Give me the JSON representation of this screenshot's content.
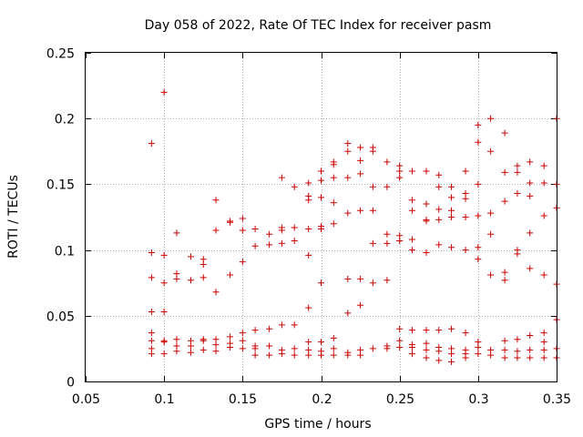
{
  "chart_data": {
    "type": "scatter",
    "title": "Day 058 of 2022, Rate Of TEC Index for receiver pasm",
    "xlabel": "GPS time / hours",
    "ylabel": "ROTI / TECUs",
    "xlim": [
      0.05,
      0.35
    ],
    "ylim": [
      0,
      0.25
    ],
    "xticks": [
      0.05,
      0.1,
      0.15,
      0.2,
      0.25,
      0.3,
      0.35
    ],
    "xtick_labels": [
      "0.05",
      "0.1",
      "0.15",
      "0.2",
      "0.25",
      "0.3",
      "0.35"
    ],
    "yticks": [
      0,
      0.05,
      0.1,
      0.15,
      0.2,
      0.25
    ],
    "ytick_labels": [
      "0",
      "0.05",
      "0.1",
      "0.15",
      "0.2",
      "0.25"
    ],
    "grid": true,
    "marker": "+",
    "color": "#cc0000",
    "series": [
      {
        "name": "ROTI",
        "points": [
          [
            0.092,
            0.181
          ],
          [
            0.092,
            0.098
          ],
          [
            0.092,
            0.079
          ],
          [
            0.092,
            0.053
          ],
          [
            0.092,
            0.037
          ],
          [
            0.092,
            0.031
          ],
          [
            0.092,
            0.025
          ],
          [
            0.092,
            0.021
          ],
          [
            0.1,
            0.22
          ],
          [
            0.1,
            0.096
          ],
          [
            0.1,
            0.075
          ],
          [
            0.1,
            0.053
          ],
          [
            0.1,
            0.031
          ],
          [
            0.1,
            0.03
          ],
          [
            0.1,
            0.021
          ],
          [
            0.108,
            0.113
          ],
          [
            0.108,
            0.082
          ],
          [
            0.108,
            0.078
          ],
          [
            0.108,
            0.032
          ],
          [
            0.108,
            0.027
          ],
          [
            0.108,
            0.023
          ],
          [
            0.117,
            0.095
          ],
          [
            0.117,
            0.077
          ],
          [
            0.117,
            0.031
          ],
          [
            0.117,
            0.027
          ],
          [
            0.117,
            0.022
          ],
          [
            0.125,
            0.093
          ],
          [
            0.125,
            0.089
          ],
          [
            0.125,
            0.079
          ],
          [
            0.125,
            0.032
          ],
          [
            0.125,
            0.031
          ],
          [
            0.125,
            0.024
          ],
          [
            0.133,
            0.138
          ],
          [
            0.133,
            0.115
          ],
          [
            0.133,
            0.068
          ],
          [
            0.133,
            0.032
          ],
          [
            0.133,
            0.028
          ],
          [
            0.133,
            0.023
          ],
          [
            0.142,
            0.122
          ],
          [
            0.142,
            0.121
          ],
          [
            0.142,
            0.081
          ],
          [
            0.142,
            0.034
          ],
          [
            0.142,
            0.029
          ],
          [
            0.142,
            0.026
          ],
          [
            0.15,
            0.124
          ],
          [
            0.15,
            0.115
          ],
          [
            0.15,
            0.091
          ],
          [
            0.15,
            0.037
          ],
          [
            0.15,
            0.031
          ],
          [
            0.15,
            0.025
          ],
          [
            0.158,
            0.116
          ],
          [
            0.158,
            0.103
          ],
          [
            0.158,
            0.039
          ],
          [
            0.158,
            0.027
          ],
          [
            0.158,
            0.025
          ],
          [
            0.158,
            0.02
          ],
          [
            0.167,
            0.112
          ],
          [
            0.167,
            0.104
          ],
          [
            0.167,
            0.04
          ],
          [
            0.167,
            0.027
          ],
          [
            0.167,
            0.02
          ],
          [
            0.175,
            0.155
          ],
          [
            0.175,
            0.117
          ],
          [
            0.175,
            0.115
          ],
          [
            0.175,
            0.105
          ],
          [
            0.175,
            0.043
          ],
          [
            0.175,
            0.024
          ],
          [
            0.175,
            0.021
          ],
          [
            0.183,
            0.148
          ],
          [
            0.183,
            0.117
          ],
          [
            0.183,
            0.107
          ],
          [
            0.183,
            0.043
          ],
          [
            0.183,
            0.025
          ],
          [
            0.183,
            0.02
          ],
          [
            0.192,
            0.151
          ],
          [
            0.192,
            0.141
          ],
          [
            0.192,
            0.138
          ],
          [
            0.192,
            0.116
          ],
          [
            0.192,
            0.096
          ],
          [
            0.192,
            0.056
          ],
          [
            0.192,
            0.03
          ],
          [
            0.192,
            0.024
          ],
          [
            0.192,
            0.02
          ],
          [
            0.2,
            0.16
          ],
          [
            0.2,
            0.153
          ],
          [
            0.2,
            0.14
          ],
          [
            0.2,
            0.118
          ],
          [
            0.2,
            0.116
          ],
          [
            0.2,
            0.075
          ],
          [
            0.2,
            0.03
          ],
          [
            0.2,
            0.023
          ],
          [
            0.2,
            0.02
          ],
          [
            0.208,
            0.167
          ],
          [
            0.208,
            0.165
          ],
          [
            0.208,
            0.155
          ],
          [
            0.208,
            0.136
          ],
          [
            0.208,
            0.12
          ],
          [
            0.208,
            0.033
          ],
          [
            0.208,
            0.025
          ],
          [
            0.208,
            0.02
          ],
          [
            0.217,
            0.181
          ],
          [
            0.217,
            0.175
          ],
          [
            0.217,
            0.155
          ],
          [
            0.217,
            0.128
          ],
          [
            0.217,
            0.078
          ],
          [
            0.217,
            0.052
          ],
          [
            0.217,
            0.022
          ],
          [
            0.217,
            0.02
          ],
          [
            0.225,
            0.178
          ],
          [
            0.225,
            0.168
          ],
          [
            0.225,
            0.158
          ],
          [
            0.225,
            0.13
          ],
          [
            0.225,
            0.078
          ],
          [
            0.225,
            0.058
          ],
          [
            0.225,
            0.024
          ],
          [
            0.225,
            0.02
          ],
          [
            0.233,
            0.178
          ],
          [
            0.233,
            0.175
          ],
          [
            0.233,
            0.148
          ],
          [
            0.233,
            0.13
          ],
          [
            0.233,
            0.105
          ],
          [
            0.233,
            0.075
          ],
          [
            0.233,
            0.025
          ],
          [
            0.242,
            0.167
          ],
          [
            0.242,
            0.148
          ],
          [
            0.242,
            0.112
          ],
          [
            0.242,
            0.105
          ],
          [
            0.242,
            0.077
          ],
          [
            0.242,
            0.027
          ],
          [
            0.242,
            0.025
          ],
          [
            0.25,
            0.164
          ],
          [
            0.25,
            0.16
          ],
          [
            0.25,
            0.155
          ],
          [
            0.25,
            0.111
          ],
          [
            0.25,
            0.107
          ],
          [
            0.25,
            0.04
          ],
          [
            0.25,
            0.031
          ],
          [
            0.25,
            0.026
          ],
          [
            0.258,
            0.16
          ],
          [
            0.258,
            0.138
          ],
          [
            0.258,
            0.13
          ],
          [
            0.258,
            0.108
          ],
          [
            0.258,
            0.1
          ],
          [
            0.258,
            0.039
          ],
          [
            0.258,
            0.028
          ],
          [
            0.258,
            0.026
          ],
          [
            0.258,
            0.021
          ],
          [
            0.267,
            0.16
          ],
          [
            0.267,
            0.135
          ],
          [
            0.267,
            0.123
          ],
          [
            0.267,
            0.122
          ],
          [
            0.267,
            0.098
          ],
          [
            0.267,
            0.039
          ],
          [
            0.267,
            0.029
          ],
          [
            0.267,
            0.024
          ],
          [
            0.267,
            0.018
          ],
          [
            0.275,
            0.157
          ],
          [
            0.275,
            0.148
          ],
          [
            0.275,
            0.131
          ],
          [
            0.275,
            0.123
          ],
          [
            0.275,
            0.104
          ],
          [
            0.275,
            0.039
          ],
          [
            0.275,
            0.026
          ],
          [
            0.275,
            0.023
          ],
          [
            0.275,
            0.016
          ],
          [
            0.283,
            0.148
          ],
          [
            0.283,
            0.14
          ],
          [
            0.283,
            0.13
          ],
          [
            0.283,
            0.125
          ],
          [
            0.283,
            0.102
          ],
          [
            0.283,
            0.04
          ],
          [
            0.283,
            0.025
          ],
          [
            0.283,
            0.021
          ],
          [
            0.283,
            0.015
          ],
          [
            0.292,
            0.16
          ],
          [
            0.292,
            0.143
          ],
          [
            0.292,
            0.139
          ],
          [
            0.292,
            0.125
          ],
          [
            0.292,
            0.1
          ],
          [
            0.292,
            0.037
          ],
          [
            0.292,
            0.024
          ],
          [
            0.292,
            0.021
          ],
          [
            0.292,
            0.018
          ],
          [
            0.3,
            0.195
          ],
          [
            0.3,
            0.182
          ],
          [
            0.3,
            0.15
          ],
          [
            0.3,
            0.126
          ],
          [
            0.3,
            0.102
          ],
          [
            0.3,
            0.093
          ],
          [
            0.3,
            0.03
          ],
          [
            0.3,
            0.026
          ],
          [
            0.3,
            0.021
          ],
          [
            0.308,
            0.2
          ],
          [
            0.308,
            0.175
          ],
          [
            0.308,
            0.128
          ],
          [
            0.308,
            0.112
          ],
          [
            0.308,
            0.081
          ],
          [
            0.308,
            0.024
          ],
          [
            0.308,
            0.02
          ],
          [
            0.317,
            0.189
          ],
          [
            0.317,
            0.159
          ],
          [
            0.317,
            0.137
          ],
          [
            0.317,
            0.083
          ],
          [
            0.317,
            0.077
          ],
          [
            0.317,
            0.031
          ],
          [
            0.317,
            0.024
          ],
          [
            0.317,
            0.018
          ],
          [
            0.325,
            0.164
          ],
          [
            0.325,
            0.159
          ],
          [
            0.325,
            0.143
          ],
          [
            0.325,
            0.1
          ],
          [
            0.325,
            0.097
          ],
          [
            0.325,
            0.032
          ],
          [
            0.325,
            0.023
          ],
          [
            0.325,
            0.018
          ],
          [
            0.333,
            0.167
          ],
          [
            0.333,
            0.151
          ],
          [
            0.333,
            0.141
          ],
          [
            0.333,
            0.113
          ],
          [
            0.333,
            0.086
          ],
          [
            0.333,
            0.035
          ],
          [
            0.333,
            0.024
          ],
          [
            0.333,
            0.018
          ],
          [
            0.342,
            0.164
          ],
          [
            0.342,
            0.151
          ],
          [
            0.342,
            0.126
          ],
          [
            0.342,
            0.081
          ],
          [
            0.342,
            0.037
          ],
          [
            0.342,
            0.03
          ],
          [
            0.342,
            0.024
          ],
          [
            0.342,
            0.018
          ],
          [
            0.35,
            0.2
          ],
          [
            0.35,
            0.15
          ],
          [
            0.35,
            0.132
          ],
          [
            0.35,
            0.074
          ],
          [
            0.35,
            0.047
          ],
          [
            0.35,
            0.025
          ],
          [
            0.35,
            0.018
          ]
        ]
      }
    ]
  }
}
